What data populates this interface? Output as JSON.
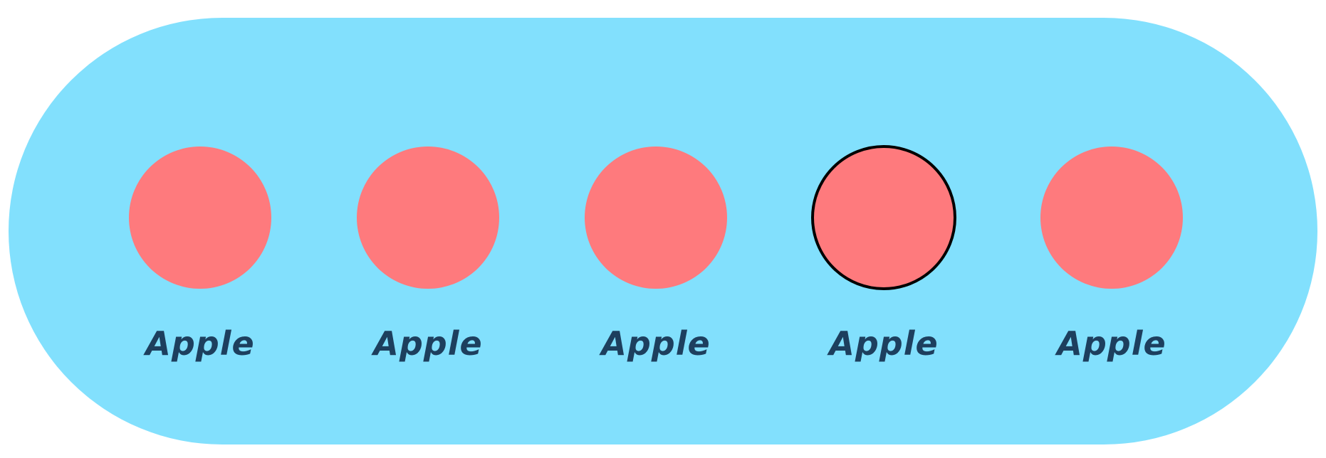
{
  "colors": {
    "background_pill": "#82e0fd",
    "apple_fill": "#fe7a7d",
    "label_text": "#1d3f5e",
    "selected_outline": "#000000"
  },
  "items": [
    {
      "label": "Apple",
      "selected": false
    },
    {
      "label": "Apple",
      "selected": false
    },
    {
      "label": "Apple",
      "selected": false
    },
    {
      "label": "Apple",
      "selected": true
    },
    {
      "label": "Apple",
      "selected": false
    }
  ]
}
